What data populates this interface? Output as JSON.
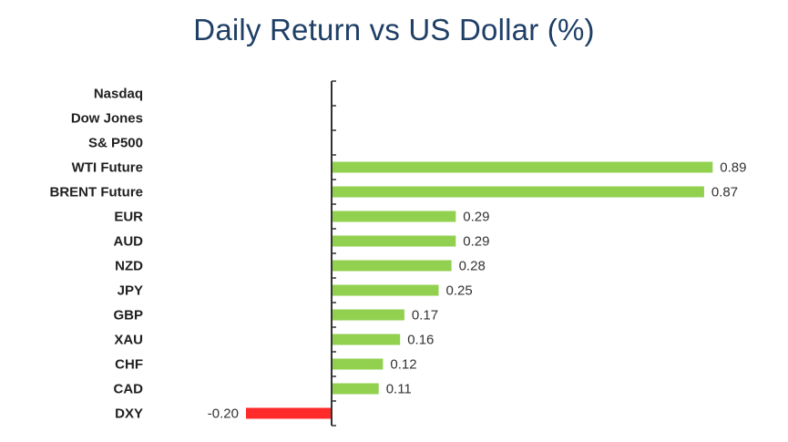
{
  "chart_data": {
    "type": "bar",
    "orientation": "horizontal",
    "title": "Daily Return vs US Dollar (%)",
    "xlabel": "",
    "ylabel": "",
    "categories": [
      "Nasdaq",
      "Dow Jones",
      "S& P500",
      "WTI Future",
      "BRENT Future",
      "EUR",
      "AUD",
      "NZD",
      "JPY",
      "GBP",
      "XAU",
      "CHF",
      "CAD",
      "DXY"
    ],
    "values": [
      null,
      null,
      null,
      0.89,
      0.87,
      0.29,
      0.29,
      0.28,
      0.25,
      0.17,
      0.16,
      0.12,
      0.11,
      -0.2
    ],
    "value_labels": [
      "",
      "",
      "",
      "0.89",
      "0.87",
      "0.29",
      "0.29",
      "0.28",
      "0.25",
      "0.17",
      "0.16",
      "0.12",
      "0.11",
      "-0.20"
    ],
    "xlim": [
      -0.2,
      0.89
    ],
    "grid": false,
    "legend": "none",
    "colors": {
      "positive": "#92d050",
      "negative": "#ff2b2b",
      "axis": "#333333",
      "title": "#1f3f66"
    }
  }
}
